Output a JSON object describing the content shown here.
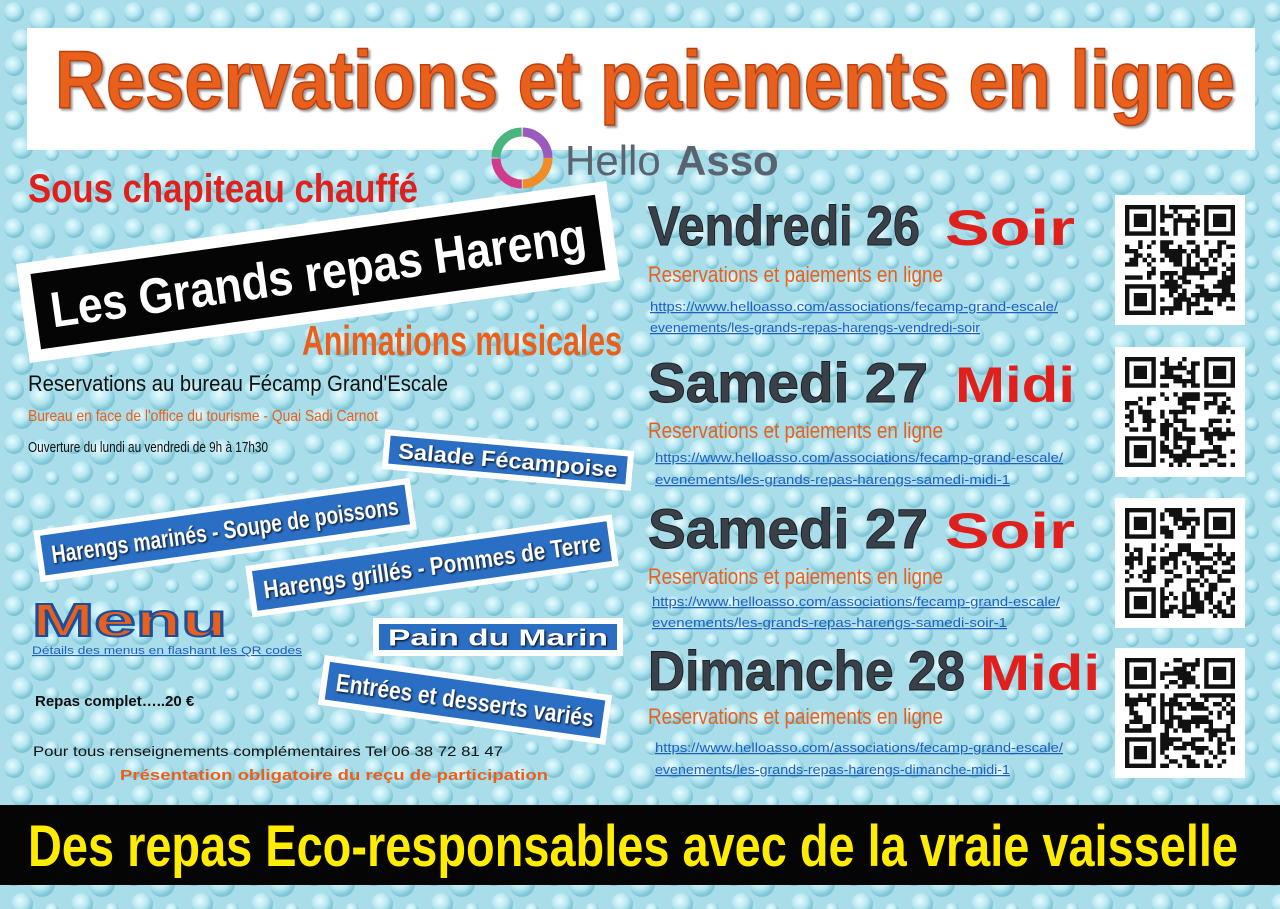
{
  "header": {
    "title": "Reservations et paiements en ligne",
    "logo": {
      "part1": "Hello",
      "part2": "Asso"
    }
  },
  "left": {
    "subtitle": "Sous chapiteau chauffé",
    "banner": "Les Grands repas Hareng",
    "animations": "Animations musicales",
    "bureau": "Reservations au bureau Fécamp Grand'Escale",
    "address": "Bureau en face de l'office du tourisme - Quai Sadi Carnot",
    "hours": "Ouverture du lundi au vendredi de 9h à 17h30"
  },
  "menu": {
    "items": [
      "Salade Fécampoise",
      "Harengs marinés - Soupe de poissons",
      "Harengs grillés - Pommes de Terre",
      "Pain du Marin",
      "Entrées et desserts variés"
    ],
    "title": "Menu",
    "note": "Détails des menus en flashant les QR codes",
    "price": "Repas complet…..20 €",
    "contact": "Pour tous renseignements complémentaires Tel 06 38 72 81 47",
    "receipt": "Présentation obligatoire du reçu de participation"
  },
  "events": [
    {
      "day": "Vendredi 26",
      "slot": "Soir",
      "label": "Reservations et paiements en ligne",
      "url_1": "https://www.helloasso.com/associations/fecamp-grand-escale/",
      "url_2": "evenements/les-grands-repas-harengs-vendredi-soir"
    },
    {
      "day": "Samedi 27",
      "slot": "Midi",
      "label": "Reservations et paiements en ligne",
      "url_1": "https://www.helloasso.com/associations/fecamp-grand-escale/",
      "url_2": "evenements/les-grands-repas-harengs-samedi-midi-1"
    },
    {
      "day": "Samedi 27",
      "slot": "Soir",
      "label": "Reservations et paiements en ligne",
      "url_1": "https://www.helloasso.com/associations/fecamp-grand-escale/",
      "url_2": "evenements/les-grands-repas-harengs-samedi-soir-1"
    },
    {
      "day": "Dimanche 28",
      "slot": "Midi",
      "label": "Reservations et paiements en ligne",
      "url_1": "https://www.helloasso.com/associations/fecamp-grand-escale/",
      "url_2": "evenements/les-grands-repas-harengs-dimanche-midi-1"
    }
  ],
  "footer": {
    "text": "Des repas Eco-responsables  avec de la vraie vaisselle"
  }
}
